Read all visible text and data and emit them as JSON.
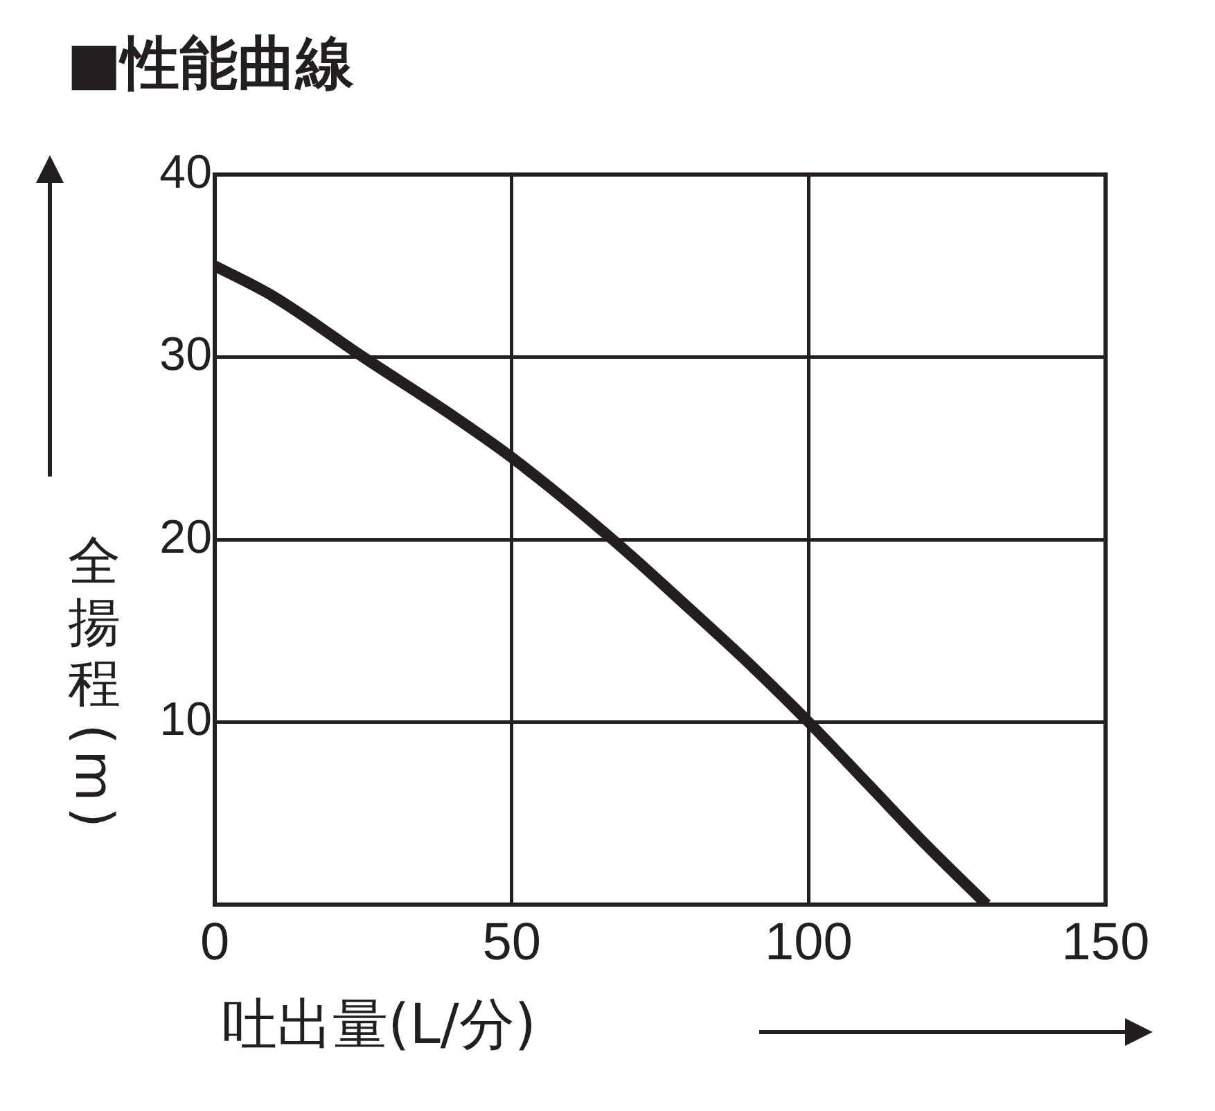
{
  "chart_data": {
    "type": "line",
    "title": "■性能曲線",
    "xlabel": "吐出量(L/分)",
    "ylabel": "全揚程(m)",
    "series": [
      {
        "color": "#231f20",
        "x": [
          0,
          10,
          25,
          40,
          50,
          67,
          80,
          90,
          100,
          110,
          120,
          130
        ],
        "values": [
          35,
          33.3,
          30,
          26.8,
          24.5,
          20,
          16.2,
          13.2,
          10,
          6.6,
          3.2,
          0
        ]
      }
    ],
    "xlim": [
      0,
      150
    ],
    "xticks": [
      0,
      50,
      100,
      150
    ],
    "ylim": [
      0,
      40
    ],
    "yticks": [
      10,
      20,
      30,
      40
    ],
    "grid": true,
    "legend": false,
    "marker": "none",
    "line_style": "solid"
  }
}
